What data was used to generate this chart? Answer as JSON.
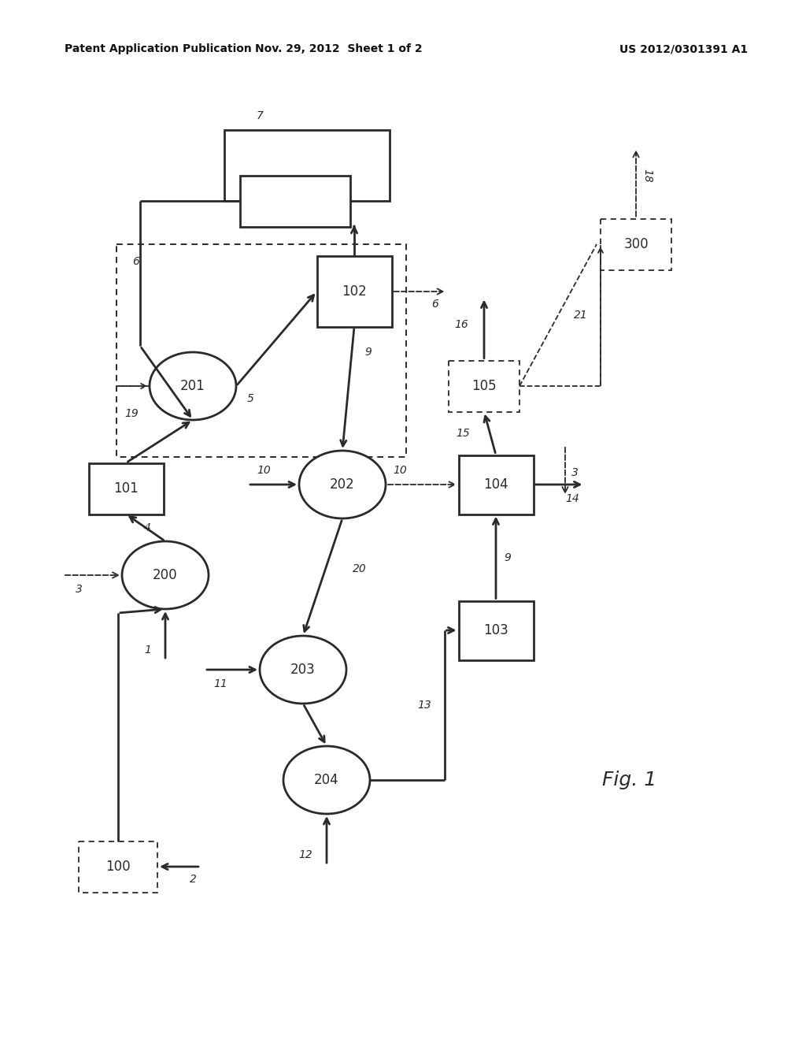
{
  "bg": "#ffffff",
  "lc": "#2a2a2a",
  "header_left": "Patent Application Publication",
  "header_mid": "Nov. 29, 2012  Sheet 1 of 2",
  "header_right": "US 2012/0301391 A1",
  "fig_caption": "Fig. 1",
  "lw_thick": 2.0,
  "lw_thin": 1.4,
  "lw_dashed": 1.3
}
